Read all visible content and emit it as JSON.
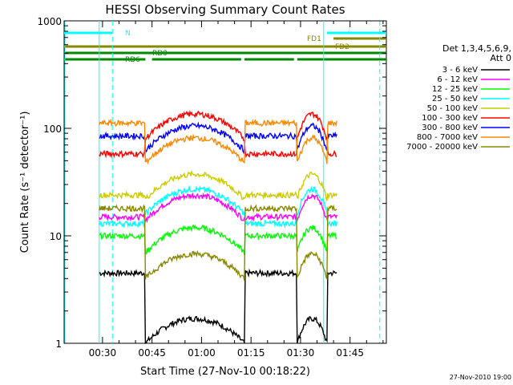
{
  "chart_data": {
    "type": "line",
    "title": "HESSI Observing Summary Count Rates",
    "xlabel": "Start Time (27-Nov-10 00:18:22)",
    "ylabel": "Count Rate (s⁻¹ detector⁻¹)",
    "y_scale": "log",
    "ylim": [
      1,
      1000
    ],
    "xlim_minutes": [
      "00:18:22",
      "01:56"
    ],
    "x_ticks": [
      "00:30",
      "00:45",
      "01:00",
      "01:15",
      "01:30",
      "01:45"
    ],
    "y_ticks": [
      "1",
      "10",
      "100",
      "1000"
    ],
    "legend": {
      "title_line1": "Det 1,3,4,5,6,9,",
      "title_line2": "Att 0",
      "placement": "right-outside"
    },
    "series": [
      {
        "name": "3 - 6 keV",
        "color": "#000000",
        "day": 4.5,
        "night": 1.0
      },
      {
        "name": "6 - 12 keV",
        "color": "#ff00ff",
        "day": 15.0,
        "night": 14.0
      },
      {
        "name": "12 - 25 keV",
        "color": "#00ff00",
        "day": 10.0,
        "night": 7.0
      },
      {
        "name": "25 - 50 keV",
        "color": "#00ffff",
        "day": 13.0,
        "night": 16.0
      },
      {
        "name": "50 - 100 keV",
        "color": "#cccc00",
        "day": 24.0,
        "night": 22.0
      },
      {
        "name": "100 - 300 keV",
        "color": "#ff0000",
        "day": 58.0,
        "night": 80.0
      },
      {
        "name": "300 - 800 keV",
        "color": "#0000ff",
        "day": 85.0,
        "night": 62.0
      },
      {
        "name": "800 - 7000 keV",
        "color": "#ff8800",
        "day": 112.0,
        "night": 48.0
      },
      {
        "name": "7000 - 20000 keV",
        "color": "#888800",
        "day": 18.0,
        "night": 4.0
      }
    ],
    "flags": [
      {
        "label": "N",
        "color": "#00ffff",
        "segments": [
          [
            "00:18:22",
            "00:33"
          ],
          [
            "01:38",
            "01:56"
          ]
        ]
      },
      {
        "label": "FD1",
        "color": "#888800",
        "segments": [
          [
            "01:40",
            "01:56"
          ]
        ]
      },
      {
        "label": "FD2",
        "color": "#888800",
        "segments": [
          [
            "00:18:22",
            "01:56"
          ]
        ]
      },
      {
        "label": "RD0",
        "color": "#008800",
        "segments": [
          [
            "00:18:22",
            "01:56"
          ]
        ]
      },
      {
        "label": "RD6",
        "color": "#008800",
        "segments": [
          [
            "00:18:22",
            "00:43"
          ],
          [
            "00:45",
            "01:12"
          ],
          [
            "01:13",
            "01:28"
          ],
          [
            "01:29",
            "01:56"
          ]
        ]
      }
    ],
    "saa_boundaries": [
      "00:29",
      "00:33",
      "01:37",
      "01:54"
    ],
    "night_intervals": [
      [
        "00:43",
        "01:13"
      ],
      [
        "01:29",
        "01:38"
      ]
    ],
    "data_start": "00:29",
    "data_end": "01:41",
    "footer_date": "27-Nov-2010 19:00",
    "grid": false
  }
}
